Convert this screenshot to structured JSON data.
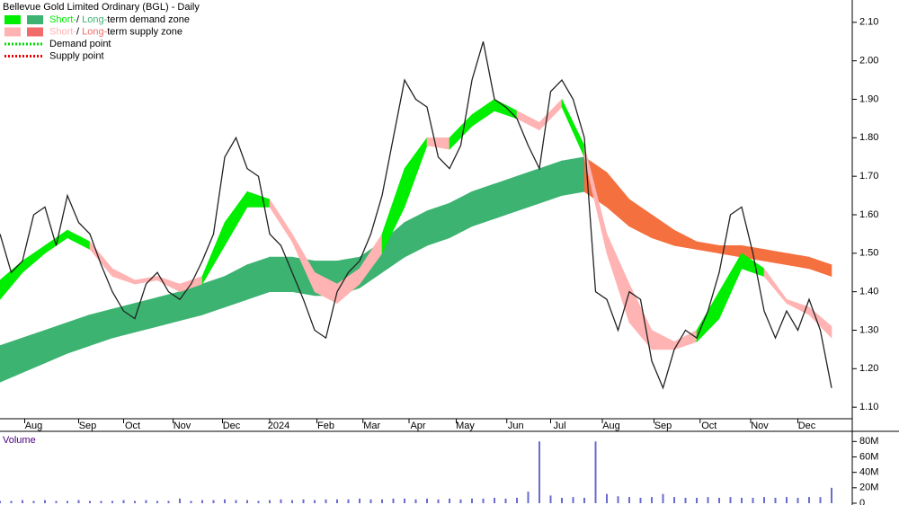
{
  "chart_data": [
    {
      "type": "line",
      "title": "Bellevue Gold Limited Ordinary (BGL) - Daily",
      "legend": [
        {
          "swatches": [
            "#00ee00",
            "#3cb371"
          ],
          "text": [
            "Short-",
            "/ ",
            "Long-",
            "term demand zone"
          ]
        },
        {
          "swatches": [
            "#ffb3b3",
            "#f26b6b"
          ],
          "text": [
            "Short-",
            "/ ",
            "Long-",
            "term supply zone"
          ]
        },
        {
          "line": "#00dd00",
          "text": [
            "Demand point"
          ]
        },
        {
          "line": "#ee0000",
          "text": [
            "Supply point"
          ]
        }
      ],
      "xlim": [
        0,
        75.6
      ],
      "ylim": [
        1.07,
        2.158
      ],
      "xticks": [
        {
          "value": 3.0,
          "label": "Aug"
        },
        {
          "value": 7.8,
          "label": "Sep"
        },
        {
          "value": 11.8,
          "label": "Oct"
        },
        {
          "value": 16.2,
          "label": "Nov"
        },
        {
          "value": 20.6,
          "label": "Dec"
        },
        {
          "value": 24.8,
          "label": "2024"
        },
        {
          "value": 29.0,
          "label": "Feb"
        },
        {
          "value": 33.1,
          "label": "Mar"
        },
        {
          "value": 37.2,
          "label": "Apr"
        },
        {
          "value": 41.4,
          "label": "May"
        },
        {
          "value": 45.9,
          "label": "Jun"
        },
        {
          "value": 49.8,
          "label": "Jul"
        },
        {
          "value": 54.4,
          "label": "Aug"
        },
        {
          "value": 59.0,
          "label": "Sep"
        },
        {
          "value": 63.1,
          "label": "Oct"
        },
        {
          "value": 67.6,
          "label": "Nov"
        },
        {
          "value": 71.8,
          "label": "Dec"
        }
      ],
      "yticks": [
        {
          "value": 1.1,
          "label": "1.10"
        },
        {
          "value": 1.2,
          "label": "1.20"
        },
        {
          "value": 1.3,
          "label": "1.30"
        },
        {
          "value": 1.4,
          "label": "1.40"
        },
        {
          "value": 1.5,
          "label": "1.50"
        },
        {
          "value": 1.6,
          "label": "1.60"
        },
        {
          "value": 1.7,
          "label": "1.70"
        },
        {
          "value": 1.8,
          "label": "1.80"
        },
        {
          "value": 1.9,
          "label": "1.90"
        },
        {
          "value": 2.0,
          "label": "2.00"
        },
        {
          "value": 2.1,
          "label": "2.10"
        }
      ],
      "bands": [
        {
          "colors": {
            "demand": "#3cb371",
            "supply": "#f5703f"
          },
          "x": [
            0,
            2,
            4,
            6,
            8,
            10,
            12,
            14,
            16,
            18,
            20,
            22,
            24,
            26,
            28,
            30,
            32,
            34,
            36,
            38,
            40,
            42,
            44,
            46,
            48,
            50,
            52,
            54,
            56,
            58,
            60,
            62,
            64,
            66,
            68,
            70,
            72,
            74
          ],
          "upper": [
            1.26,
            1.28,
            1.3,
            1.32,
            1.34,
            1.355,
            1.37,
            1.385,
            1.4,
            1.42,
            1.44,
            1.47,
            1.49,
            1.49,
            1.48,
            1.48,
            1.49,
            1.53,
            1.58,
            1.61,
            1.63,
            1.66,
            1.68,
            1.7,
            1.72,
            1.74,
            1.75,
            1.71,
            1.64,
            1.6,
            1.56,
            1.53,
            1.52,
            1.52,
            1.51,
            1.5,
            1.49,
            1.47
          ],
          "lower": [
            1.165,
            1.19,
            1.215,
            1.24,
            1.26,
            1.28,
            1.295,
            1.31,
            1.325,
            1.34,
            1.36,
            1.38,
            1.4,
            1.4,
            1.39,
            1.39,
            1.41,
            1.45,
            1.49,
            1.52,
            1.54,
            1.57,
            1.59,
            1.61,
            1.63,
            1.65,
            1.66,
            1.62,
            1.57,
            1.54,
            1.52,
            1.51,
            1.5,
            1.49,
            1.48,
            1.47,
            1.46,
            1.44
          ],
          "zones": [
            "demand",
            "demand",
            "demand",
            "demand",
            "demand",
            "demand",
            "demand",
            "demand",
            "demand",
            "demand",
            "demand",
            "demand",
            "demand",
            "demand",
            "demand",
            "demand",
            "demand",
            "demand",
            "demand",
            "demand",
            "demand",
            "demand",
            "demand",
            "demand",
            "demand",
            "demand",
            "supply",
            "supply",
            "supply",
            "supply",
            "supply",
            "supply",
            "supply",
            "supply",
            "supply",
            "supply",
            "supply",
            "supply"
          ]
        },
        {
          "colors": {
            "demand": "#00ee00",
            "supply": "#ffb3b3"
          },
          "x": [
            0,
            2,
            4,
            6,
            8,
            10,
            12,
            14,
            16,
            18,
            20,
            22,
            24,
            26,
            28,
            30,
            32,
            34,
            36,
            38,
            40,
            42,
            44,
            46,
            48,
            50,
            52,
            54,
            56,
            58,
            60,
            62,
            64,
            66,
            68,
            70,
            72,
            74
          ],
          "upper": [
            1.43,
            1.48,
            1.52,
            1.56,
            1.53,
            1.46,
            1.43,
            1.44,
            1.42,
            1.44,
            1.58,
            1.66,
            1.64,
            1.55,
            1.45,
            1.42,
            1.46,
            1.55,
            1.72,
            1.8,
            1.8,
            1.86,
            1.9,
            1.87,
            1.84,
            1.9,
            1.78,
            1.55,
            1.42,
            1.3,
            1.27,
            1.3,
            1.4,
            1.5,
            1.46,
            1.38,
            1.36,
            1.31
          ],
          "lower": [
            1.38,
            1.45,
            1.5,
            1.54,
            1.51,
            1.44,
            1.42,
            1.43,
            1.4,
            1.42,
            1.52,
            1.62,
            1.62,
            1.53,
            1.4,
            1.37,
            1.42,
            1.5,
            1.62,
            1.78,
            1.77,
            1.83,
            1.87,
            1.85,
            1.82,
            1.88,
            1.75,
            1.5,
            1.32,
            1.25,
            1.25,
            1.27,
            1.33,
            1.46,
            1.44,
            1.37,
            1.34,
            1.28
          ],
          "zones": [
            "demand",
            "demand",
            "demand",
            "demand",
            "supply",
            "supply",
            "supply",
            "supply",
            "supply",
            "demand",
            "demand",
            "demand",
            "supply",
            "supply",
            "supply",
            "supply",
            "supply",
            "demand",
            "demand",
            "supply",
            "demand",
            "demand",
            "demand",
            "supply",
            "supply",
            "demand",
            "supply",
            "supply",
            "supply",
            "supply",
            "supply",
            "demand",
            "demand",
            "demand",
            "supply",
            "supply",
            "supply",
            "supply"
          ]
        }
      ],
      "x": [
        0,
        1,
        2,
        3,
        4,
        5,
        6,
        7,
        8,
        9,
        10,
        11,
        12,
        13,
        14,
        15,
        16,
        17,
        18,
        19,
        20,
        21,
        22,
        23,
        24,
        25,
        26,
        27,
        28,
        29,
        30,
        31,
        32,
        33,
        34,
        35,
        36,
        37,
        38,
        39,
        40,
        41,
        42,
        43,
        44,
        45,
        46,
        47,
        48,
        49,
        50,
        51,
        52,
        53,
        54,
        55,
        56,
        57,
        58,
        59,
        60,
        61,
        62,
        63,
        64,
        65,
        66,
        67,
        68,
        69,
        70,
        71,
        72,
        73,
        74
      ],
      "series": [
        {
          "color": "#222222",
          "values": [
            1.55,
            1.45,
            1.48,
            1.6,
            1.62,
            1.52,
            1.65,
            1.58,
            1.55,
            1.47,
            1.4,
            1.35,
            1.33,
            1.42,
            1.45,
            1.4,
            1.38,
            1.42,
            1.48,
            1.55,
            1.75,
            1.8,
            1.72,
            1.7,
            1.55,
            1.52,
            1.45,
            1.38,
            1.3,
            1.28,
            1.4,
            1.45,
            1.48,
            1.55,
            1.65,
            1.8,
            1.95,
            1.9,
            1.88,
            1.75,
            1.72,
            1.78,
            1.95,
            2.05,
            1.9,
            1.88,
            1.85,
            1.78,
            1.72,
            1.92,
            1.95,
            1.9,
            1.8,
            1.4,
            1.38,
            1.3,
            1.4,
            1.38,
            1.22,
            1.15,
            1.25,
            1.3,
            1.28,
            1.35,
            1.45,
            1.6,
            1.62,
            1.5,
            1.35,
            1.28,
            1.35,
            1.3,
            1.38,
            1.3,
            1.15
          ]
        }
      ]
    },
    {
      "type": "bar",
      "title": "Volume",
      "color": "#6a6ad0",
      "xlim": [
        0,
        75.6
      ],
      "ylim": [
        0,
        92
      ],
      "yticks": [
        {
          "value": 0,
          "label": "0"
        },
        {
          "value": 20,
          "label": "20M"
        },
        {
          "value": 40,
          "label": "40M"
        },
        {
          "value": 60,
          "label": "60M"
        },
        {
          "value": 80,
          "label": "80M"
        }
      ],
      "x": [
        0,
        1,
        2,
        3,
        4,
        5,
        6,
        7,
        8,
        9,
        10,
        11,
        12,
        13,
        14,
        15,
        16,
        17,
        18,
        19,
        20,
        21,
        22,
        23,
        24,
        25,
        26,
        27,
        28,
        29,
        30,
        31,
        32,
        33,
        34,
        35,
        36,
        37,
        38,
        39,
        40,
        41,
        42,
        43,
        44,
        45,
        46,
        47,
        48,
        49,
        50,
        51,
        52,
        53,
        54,
        55,
        56,
        57,
        58,
        59,
        60,
        61,
        62,
        63,
        64,
        65,
        66,
        67,
        68,
        69,
        70,
        71,
        72,
        73,
        74
      ],
      "values": [
        3,
        3,
        4,
        3,
        4,
        3,
        3,
        4,
        3,
        3,
        3,
        4,
        3,
        4,
        3,
        3,
        6,
        3,
        4,
        4,
        5,
        4,
        4,
        3,
        4,
        5,
        4,
        5,
        4,
        5,
        5,
        5,
        6,
        5,
        5,
        6,
        6,
        5,
        6,
        5,
        6,
        5,
        6,
        6,
        7,
        6,
        7,
        15,
        80,
        10,
        7,
        8,
        7,
        80,
        12,
        9,
        8,
        7,
        8,
        12,
        8,
        7,
        7,
        8,
        7,
        8,
        7,
        7,
        8,
        7,
        8,
        7,
        8,
        8,
        20
      ]
    }
  ]
}
